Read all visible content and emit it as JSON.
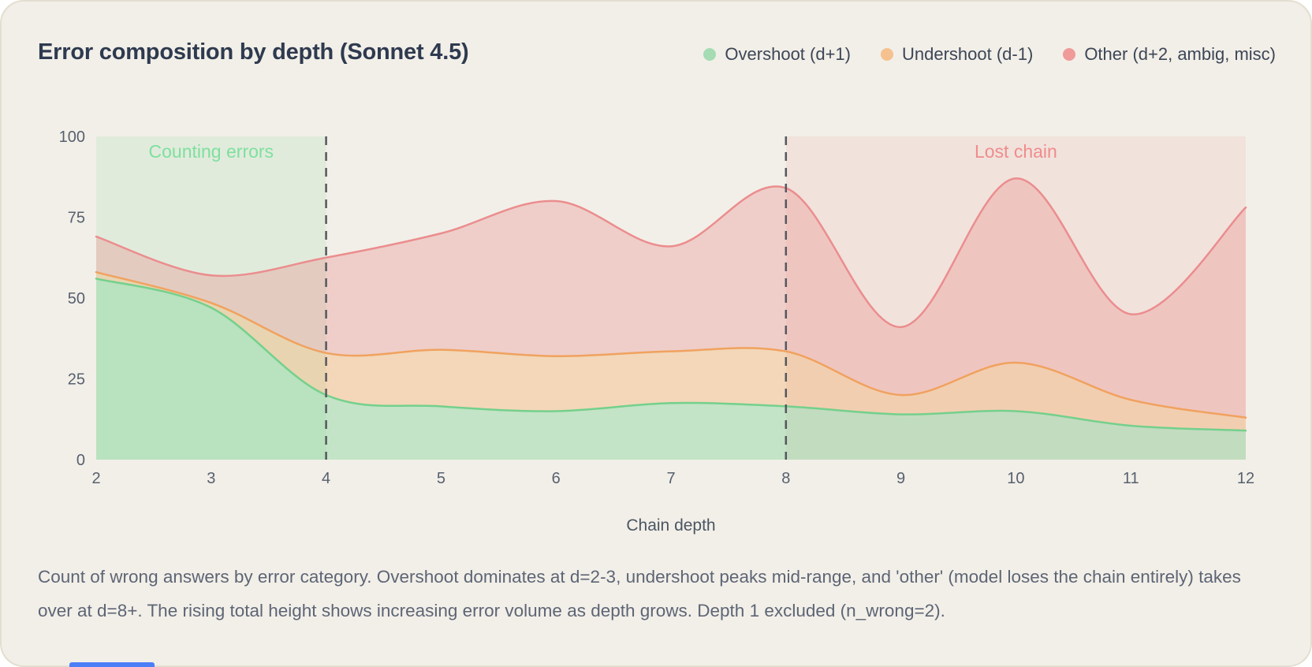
{
  "card": {
    "title": "Error composition by depth (Sonnet 4.5)",
    "caption": "Count of wrong answers by error category. Overshoot dominates at d=2-3, undershoot peaks mid-range, and 'other' (model loses the chain entirely) takes over at d=8+. The rising total height shows increasing error volume as depth grows. Depth 1 excluded (n_wrong=2)."
  },
  "legend": [
    {
      "label": "Overshoot (d+1)",
      "color": "#a5dcb3"
    },
    {
      "label": "Undershoot (d-1)",
      "color": "#f5c18e"
    },
    {
      "label": "Other (d+2, ambig, misc)",
      "color": "#f09a9a"
    }
  ],
  "colors": {
    "background": "#f2efe8",
    "title_text": "#2e3a4f",
    "tick_text": "#57606f",
    "axis_label_text": "#4b5563",
    "caption_text": "#5d6575",
    "dashed_line": "#54585e"
  },
  "chart_data": {
    "type": "area",
    "stacked": true,
    "title": "Error composition by depth (Sonnet 4.5)",
    "xlabel": "Chain depth",
    "ylabel": "",
    "ylim": [
      0,
      100
    ],
    "yticks": [
      0,
      25,
      50,
      75,
      100
    ],
    "xticks": [
      2,
      3,
      4,
      5,
      6,
      7,
      8,
      9,
      10,
      11,
      12
    ],
    "grid": false,
    "legend_position": "top-right",
    "x": [
      2,
      3,
      4,
      5,
      6,
      7,
      8,
      9,
      10,
      11,
      12
    ],
    "series": [
      {
        "name": "Overshoot (d+1)",
        "values": [
          56,
          47,
          20,
          16.5,
          15,
          17.5,
          16.5,
          14,
          15,
          10.5,
          9
        ],
        "fill": "rgba(126,212,147,0.40)",
        "stroke": "#74d08c"
      },
      {
        "name": "Undershoot (d-1)",
        "values": [
          2,
          1.5,
          13,
          17.5,
          17,
          16,
          17,
          6,
          15,
          8,
          4
        ],
        "fill": "rgba(246,166,89,0.33)",
        "stroke": "#f0a25f"
      },
      {
        "name": "Other (d+2, ambig, misc)",
        "values": [
          11,
          8.5,
          29.5,
          36,
          48,
          32.5,
          50.5,
          21,
          57,
          26.5,
          65
        ],
        "fill": "rgba(232,122,122,0.28)",
        "stroke": "#eb8d8e"
      }
    ],
    "stacked_totals": [
      69,
      57,
      62.5,
      70,
      80,
      66,
      84,
      41,
      87,
      45,
      78
    ],
    "bands": [
      {
        "from": 2,
        "to": 4,
        "label": "Counting errors",
        "fill": "rgba(126,212,147,0.14)",
        "text_color": "#7de09e"
      },
      {
        "from": 8,
        "to": 12,
        "label": "Lost chain",
        "fill": "rgba(236,142,142,0.13)",
        "text_color": "#f08c8c"
      }
    ],
    "dashed_lines": [
      4,
      8
    ]
  }
}
